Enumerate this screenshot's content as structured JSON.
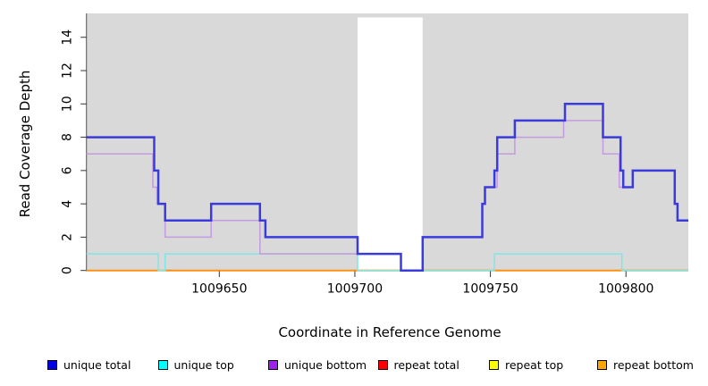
{
  "chart_data": {
    "type": "line",
    "subtype": "step-after-coverage-plot",
    "title": "",
    "xlabel": "Coordinate in Reference Genome",
    "ylabel": "Read Coverage Depth",
    "xlim": [
      1009601,
      1009823
    ],
    "ylim": [
      0,
      15.4
    ],
    "x_ticks": [
      1009650,
      1009700,
      1009750,
      1009800
    ],
    "y_ticks": [
      0,
      2,
      4,
      6,
      8,
      10,
      12,
      14
    ],
    "grid": "off",
    "legend_position": "bottom",
    "panel_bg": "#d9d9d9",
    "axis_color": "#555555",
    "gap_region": {
      "x0": 1009701,
      "x1": 1009725,
      "color": "#ffffff",
      "note": "white masked band over panel"
    },
    "blend_segments": {
      "color": "#7cc27c",
      "note": "green where semi-transparent unique-top at 0 overlaps repeat-bottom",
      "ranges": [
        [
          1009701,
          1009750
        ],
        [
          1009798.5,
          1009823
        ]
      ]
    },
    "series": [
      {
        "name": "repeat total",
        "legend_color": "#ff0000",
        "plot_color": "#ff0000",
        "width": 1.4,
        "points": [
          [
            1009601,
            0
          ],
          [
            1009823,
            0
          ]
        ]
      },
      {
        "name": "repeat top",
        "legend_color": "#ffff00",
        "plot_color": "#ffff00",
        "width": 1.4,
        "points": [
          [
            1009601,
            0
          ],
          [
            1009823,
            0
          ]
        ]
      },
      {
        "name": "repeat bottom",
        "legend_color": "#ffa500",
        "plot_color": "#ff9117",
        "width": 2,
        "points": [
          [
            1009601,
            0
          ],
          [
            1009823,
            0
          ]
        ]
      },
      {
        "name": "unique top",
        "legend_color": "#00ffff",
        "plot_color": "#7ee6e6",
        "width": 1.5,
        "points": [
          [
            1009601,
            1
          ],
          [
            1009627.5,
            0
          ],
          [
            1009630,
            1
          ],
          [
            1009701,
            0
          ],
          [
            1009751.5,
            1
          ],
          [
            1009798.5,
            0
          ],
          [
            1009823,
            0
          ]
        ]
      },
      {
        "name": "unique bottom",
        "legend_color": "#a020f0",
        "plot_color": "#c49ae0",
        "width": 1.5,
        "points": [
          [
            1009601,
            7
          ],
          [
            1009625.5,
            5
          ],
          [
            1009627,
            4
          ],
          [
            1009630,
            2
          ],
          [
            1009647,
            3
          ],
          [
            1009665,
            1
          ],
          [
            1009717,
            0
          ],
          [
            1009725,
            2
          ],
          [
            1009747,
            4
          ],
          [
            1009748,
            5
          ],
          [
            1009752.5,
            7
          ],
          [
            1009759,
            8
          ],
          [
            1009777,
            9
          ],
          [
            1009791.5,
            7
          ],
          [
            1009797.5,
            5
          ],
          [
            1009802.5,
            6
          ],
          [
            1009818,
            4
          ],
          [
            1009819,
            3
          ],
          [
            1009823,
            3
          ]
        ]
      },
      {
        "name": "unique total",
        "legend_color": "#0000e0",
        "plot_color": "#3b3bdc",
        "width": 2.5,
        "points": [
          [
            1009601,
            8
          ],
          [
            1009626,
            6
          ],
          [
            1009627.5,
            4
          ],
          [
            1009630,
            3
          ],
          [
            1009647,
            4
          ],
          [
            1009665,
            3
          ],
          [
            1009667,
            2
          ],
          [
            1009701,
            1
          ],
          [
            1009717,
            0
          ],
          [
            1009725,
            2
          ],
          [
            1009747,
            4
          ],
          [
            1009748,
            5
          ],
          [
            1009751.5,
            6
          ],
          [
            1009752.5,
            8
          ],
          [
            1009759,
            9
          ],
          [
            1009777.5,
            10
          ],
          [
            1009791.5,
            8
          ],
          [
            1009798,
            6
          ],
          [
            1009799,
            5
          ],
          [
            1009802.5,
            6
          ],
          [
            1009818,
            4
          ],
          [
            1009819,
            3
          ],
          [
            1009823,
            3
          ]
        ]
      }
    ],
    "legend_order": [
      "unique total",
      "unique top",
      "unique bottom",
      "repeat total",
      "repeat top",
      "repeat bottom"
    ]
  }
}
